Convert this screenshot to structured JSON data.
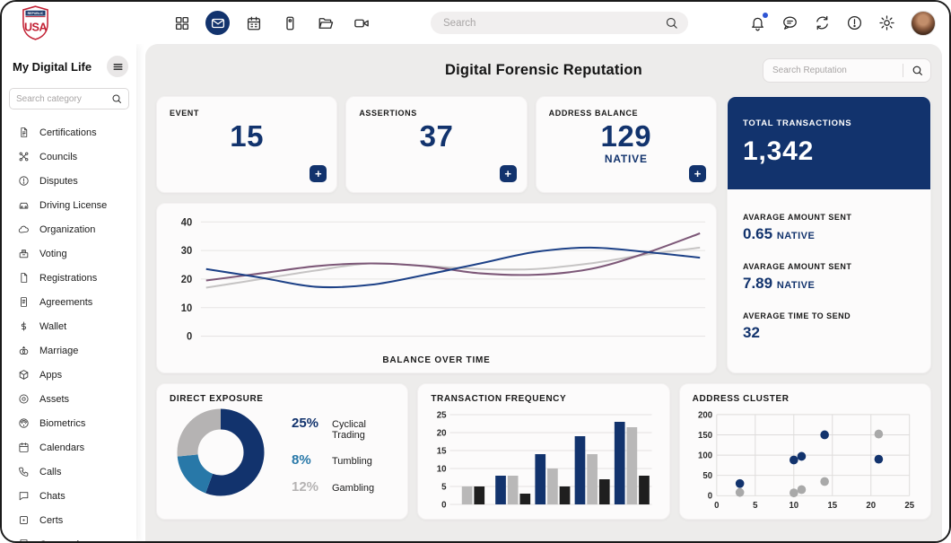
{
  "colors": {
    "accent_navy": "#12336d",
    "teal": "#2878a8",
    "gray": "#b5b3b3",
    "dark": "#1f1f1f",
    "notification_dot": "#2f55d4",
    "logo_red": "#c22033",
    "logo_navy": "#1d3a6b"
  },
  "topbar": {
    "logo": {
      "top_text": "REPUBLIC",
      "main_text": "USA"
    },
    "nav_icons": [
      {
        "name": "grid-icon",
        "active": false
      },
      {
        "name": "mail-icon",
        "active": true
      },
      {
        "name": "calendar-icon",
        "active": false
      },
      {
        "name": "phone-icon",
        "active": false
      },
      {
        "name": "folder-icon",
        "active": false
      },
      {
        "name": "video-icon",
        "active": false
      }
    ],
    "search_placeholder": "Search",
    "right_icons": [
      {
        "name": "bell-icon",
        "has_badge": true
      },
      {
        "name": "chat-icon",
        "has_badge": false
      },
      {
        "name": "refresh-icon",
        "has_badge": false
      },
      {
        "name": "info-icon",
        "has_badge": false
      },
      {
        "name": "gear-icon",
        "has_badge": false
      }
    ]
  },
  "sidebar": {
    "title": "My Digital Life",
    "search_placeholder": "Search category",
    "items": [
      {
        "icon": "certifications-icon",
        "label": "Certifications"
      },
      {
        "icon": "councils-icon",
        "label": "Councils"
      },
      {
        "icon": "disputes-icon",
        "label": "Disputes"
      },
      {
        "icon": "driving-license-icon",
        "label": "Driving License"
      },
      {
        "icon": "organization-icon",
        "label": "Organization"
      },
      {
        "icon": "voting-icon",
        "label": "Voting"
      },
      {
        "icon": "registrations-icon",
        "label": "Registrations"
      },
      {
        "icon": "agreements-icon",
        "label": "Agreements"
      },
      {
        "icon": "wallet-icon",
        "label": "Wallet"
      },
      {
        "icon": "marriage-icon",
        "label": "Marriage"
      },
      {
        "icon": "apps-icon",
        "label": "Apps"
      },
      {
        "icon": "assets-icon",
        "label": "Assets"
      },
      {
        "icon": "biometrics-icon",
        "label": "Biometrics"
      },
      {
        "icon": "calendars-icon",
        "label": "Calendars"
      },
      {
        "icon": "calls-icon",
        "label": "Calls"
      },
      {
        "icon": "chats-icon",
        "label": "Chats"
      },
      {
        "icon": "certs-icon",
        "label": "Certs"
      },
      {
        "icon": "companies-icon",
        "label": "Companies"
      }
    ]
  },
  "main": {
    "title": "Digital Forensic Reputation",
    "search_placeholder": "Search Reputation",
    "stat_card_action": "+",
    "stat_cards": [
      {
        "label": "EVENT",
        "value": "15",
        "unit": ""
      },
      {
        "label": "ASSERTIONS",
        "value": "37",
        "unit": ""
      },
      {
        "label": "ADDRESS BALANCE",
        "value": "129",
        "unit": "NATIVE"
      }
    ],
    "total_panel": {
      "label": "TOTAL TRANSACTIONS",
      "value": "1,342",
      "metrics": [
        {
          "label": "AVARAGE AMOUNT SENT",
          "value": "0.65",
          "unit": "NATIVE"
        },
        {
          "label": "AVARAGE AMOUNT SENT",
          "value": "7.89",
          "unit": "NATIVE"
        },
        {
          "label": "AVERAGE TIME TO SEND",
          "value": "32",
          "unit": ""
        }
      ]
    }
  },
  "chart_data": [
    {
      "type": "line",
      "title": "BALANCE OVER TIME",
      "x": [
        0,
        1,
        2,
        3,
        4,
        5,
        6,
        7,
        8,
        9
      ],
      "ylim": [
        0,
        40
      ],
      "yticks": [
        0,
        10,
        20,
        30,
        40
      ],
      "grid": true,
      "legend": "none",
      "series": [
        {
          "name": "navy",
          "color": "#1d4187",
          "values": [
            23.5,
            20.5,
            17.3,
            18,
            21.5,
            25.5,
            29.5,
            31,
            29.5,
            27.5
          ]
        },
        {
          "name": "purple",
          "color": "#7d5878",
          "values": [
            19.5,
            22,
            24.5,
            25.5,
            24.5,
            22,
            21.5,
            23.5,
            29,
            36
          ]
        },
        {
          "name": "gray",
          "color": "#c6c4c4",
          "values": [
            17,
            20,
            23,
            25.5,
            24.5,
            23.5,
            23.5,
            25.5,
            28.5,
            31
          ]
        }
      ]
    },
    {
      "type": "pie",
      "donut": true,
      "title": "DIRECT EXPOSURE",
      "labels": [
        "Cyclical Trading",
        "Tumbling",
        "Gambling"
      ],
      "values": [
        25,
        8,
        12
      ],
      "display_values": [
        "25%",
        "8%",
        "12%"
      ],
      "colors": [
        "#12336d",
        "#2878a8",
        "#b5b3b3"
      ]
    },
    {
      "type": "bar",
      "title": "TRANSACTION FREQUENCY",
      "categories": [
        "",
        "",
        "",
        "",
        ""
      ],
      "ylim": [
        0,
        25
      ],
      "yticks": [
        0,
        5,
        10,
        15,
        20,
        25
      ],
      "grid": true,
      "series": [
        {
          "name": "navy",
          "color": "#12336d",
          "values": [
            null,
            8,
            14,
            19,
            23
          ]
        },
        {
          "name": "gray",
          "color": "#b9b8b8",
          "values": [
            5,
            8,
            10,
            14,
            21.5
          ]
        },
        {
          "name": "black",
          "color": "#1f1f1f",
          "values": [
            5,
            3,
            5,
            7,
            8
          ]
        }
      ]
    },
    {
      "type": "scatter",
      "title": "ADDRESS CLUSTER",
      "xlim": [
        0,
        25
      ],
      "ylim": [
        0,
        200
      ],
      "xticks": [
        0,
        5,
        10,
        15,
        20,
        25
      ],
      "yticks": [
        0,
        50,
        100,
        150,
        200
      ],
      "grid": true,
      "series": [
        {
          "name": "navy",
          "color": "#12336d",
          "points": [
            [
              3,
              30
            ],
            [
              10,
              88
            ],
            [
              11,
              97
            ],
            [
              14,
              150
            ],
            [
              21,
              90
            ]
          ]
        },
        {
          "name": "gray",
          "color": "#a9a9a9",
          "points": [
            [
              3,
              8
            ],
            [
              10,
              7
            ],
            [
              11,
              15
            ],
            [
              14,
              35
            ],
            [
              21,
              152
            ]
          ]
        }
      ]
    }
  ]
}
